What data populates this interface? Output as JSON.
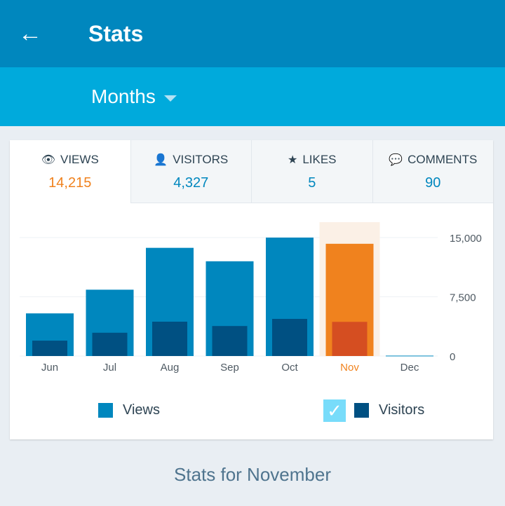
{
  "header": {
    "title": "Stats",
    "back_icon": "arrow-left-icon"
  },
  "period": {
    "selected": "Months"
  },
  "tabs": [
    {
      "label": "VIEWS",
      "value": "14,215",
      "icon": "eye-icon"
    },
    {
      "label": "VISITORS",
      "value": "4,327",
      "icon": "person-icon"
    },
    {
      "label": "LIKES",
      "value": "5",
      "icon": "star-icon"
    },
    {
      "label": "COMMENTS",
      "value": "90",
      "icon": "comment-icon"
    }
  ],
  "chart_data": {
    "type": "bar",
    "categories": [
      "Jun",
      "Jul",
      "Aug",
      "Sep",
      "Oct",
      "Nov",
      "Dec"
    ],
    "series": [
      {
        "name": "Views",
        "values": [
          5400,
          8400,
          13700,
          12000,
          15000,
          14215,
          50
        ],
        "color": "#0087be"
      },
      {
        "name": "Visitors",
        "values": [
          1950,
          2950,
          4350,
          3800,
          4700,
          4327,
          0
        ],
        "color": "#005082"
      }
    ],
    "highlight": "Nov",
    "highlight_color": "#f0821e",
    "yticks": [
      "15,000",
      "7,500",
      "0"
    ],
    "ylim": [
      0,
      15000
    ]
  },
  "legend": {
    "views": "Views",
    "visitors": "Visitors",
    "visitors_checked": true
  },
  "footer": {
    "text": "Stats for November"
  }
}
